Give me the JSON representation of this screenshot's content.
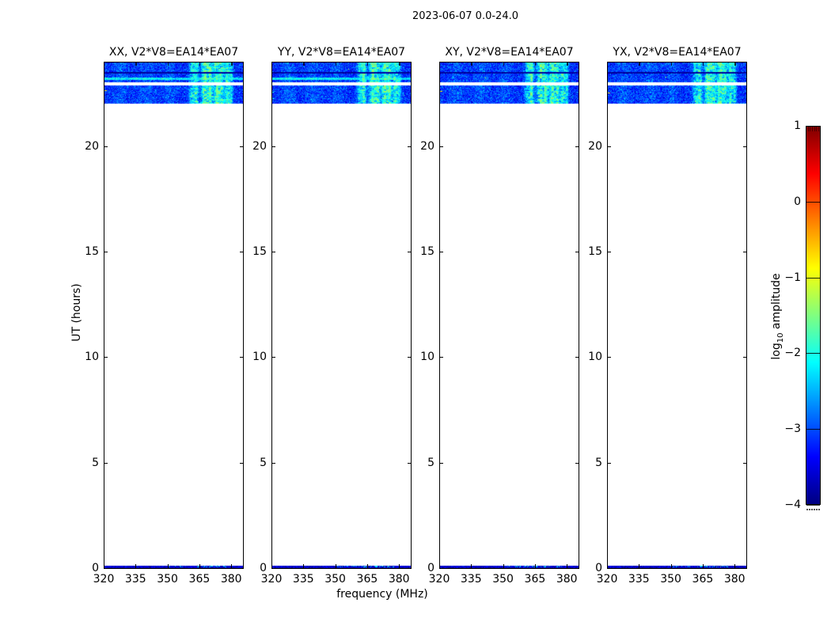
{
  "chart_data": {
    "type": "heatmap",
    "title": "2023-06-07 0.0-24.0",
    "xlabel": "frequency (MHz)",
    "ylabel": "UT (hours)",
    "xlim": [
      320,
      385.5
    ],
    "ylim": [
      0,
      24
    ],
    "xticks": [
      320,
      335,
      350,
      365,
      380
    ],
    "xtick_labels": [
      "320",
      "335",
      "350",
      "365",
      "380"
    ],
    "yticks": [
      0,
      5,
      10,
      15,
      20
    ],
    "ytick_labels": [
      "0",
      "5",
      "10",
      "15",
      "20"
    ],
    "panels": [
      {
        "pol": "XX",
        "title": "XX, V2*V8=EA14*EA07"
      },
      {
        "pol": "YY",
        "title": "YY, V2*V8=EA14*EA07"
      },
      {
        "pol": "XY",
        "title": "XY, V2*V8=EA14*EA07"
      },
      {
        "pol": "YX",
        "title": "YX, V2*V8=EA14*EA07"
      }
    ],
    "colorbar": {
      "label_prefix": "log",
      "label_sub": "10",
      "label_suffix": " amplitude",
      "colormap": "jet",
      "vmin": -4,
      "vmax": 1,
      "ticks": [
        1,
        0,
        -1,
        -2,
        -3,
        -4
      ],
      "tick_labels": [
        "1",
        "0",
        "−1",
        "−2",
        "−3",
        "−4"
      ]
    },
    "data_coverage": {
      "time_blocks_ut_hours": [
        [
          22.05,
          24.0
        ],
        [
          0.0,
          0.1
        ]
      ],
      "white_gap_ut_hours": [
        22.9,
        23.05
      ],
      "dark_row_ut_hours": [
        23.45,
        23.55
      ],
      "bright_streak_ut_hours_in_xx_yy": [
        23.2,
        23.3
      ],
      "rfi_frequency_range_mhz": [
        360,
        381
      ],
      "background_log10_amplitude": -3.15,
      "rfi_peak_log10_amplitude": -1.6
    },
    "render": {
      "block_rows": 52,
      "bands": [
        {
          "r0": 0,
          "r1": 12,
          "kind": "noise"
        },
        {
          "r0": 12,
          "r1": 14,
          "kind": "dark"
        },
        {
          "r0": 14,
          "r1": 25,
          "kind": "noise"
        },
        {
          "r0": 25,
          "r1": 29,
          "kind": "white"
        },
        {
          "r0": 29,
          "r1": 52,
          "kind": "noise"
        }
      ],
      "base": {
        "value": -3.15,
        "sigma": 0.27
      },
      "dark": {
        "value": -3.85,
        "sigma": 0.1
      },
      "streak": {
        "r0": 19,
        "r1": 22,
        "panels": [
          0,
          1
        ],
        "value": -2.3,
        "sigma": 0.22
      },
      "clusters": [
        {
          "c": 0.115,
          "w": 0.035,
          "a": 0.25
        },
        {
          "c": 0.3,
          "w": 0.045,
          "a": 0.2
        },
        {
          "c": 0.47,
          "w": 0.03,
          "a": 0.22
        },
        {
          "c": 0.635,
          "w": 0.016,
          "a": 0.85
        },
        {
          "c": 0.665,
          "w": 0.012,
          "a": 1.05
        },
        {
          "c": 0.725,
          "w": 0.018,
          "a": 1.35
        },
        {
          "c": 0.765,
          "w": 0.013,
          "a": 1.15
        },
        {
          "c": 0.815,
          "w": 0.018,
          "a": 1.35
        },
        {
          "c": 0.85,
          "w": 0.011,
          "a": 0.95
        },
        {
          "c": 0.89,
          "w": 0.016,
          "a": 1.1
        },
        {
          "c": 0.92,
          "w": 0.009,
          "a": 0.7
        }
      ],
      "bottom_strip": {
        "rows": 3,
        "value": -3.6,
        "sigma": 0.18,
        "speckle": {
          "f0": 0.45,
          "f1": 0.88,
          "p": 0.25,
          "boost": 1.25
        }
      },
      "hot_pixels": [
        [
          {
            "f": 0.0,
            "r": 35,
            "len": 3,
            "v": -0.7
          },
          {
            "f": 0.42,
            "r": 20,
            "len": 1,
            "v": -1.1
          }
        ],
        [
          {
            "f": 0.0,
            "r": 37,
            "len": 2,
            "v": -1.9
          },
          {
            "f": 0.0,
            "r": 45,
            "len": 2,
            "v": -1.9
          },
          {
            "f": 0.55,
            "r": 8,
            "len": 1,
            "v": -1.2
          }
        ],
        [
          {
            "f": 0.0,
            "r": 36,
            "len": 3,
            "v": -0.8
          },
          {
            "f": 0.33,
            "r": 19,
            "len": 1,
            "v": -1.0
          }
        ],
        [
          {
            "f": 0.0,
            "r": 38,
            "len": 3,
            "v": -0.8
          },
          {
            "f": 0.42,
            "r": 18,
            "len": 1,
            "v": -1.1
          }
        ]
      ],
      "seeds": [
        101,
        202,
        303,
        404
      ]
    }
  }
}
